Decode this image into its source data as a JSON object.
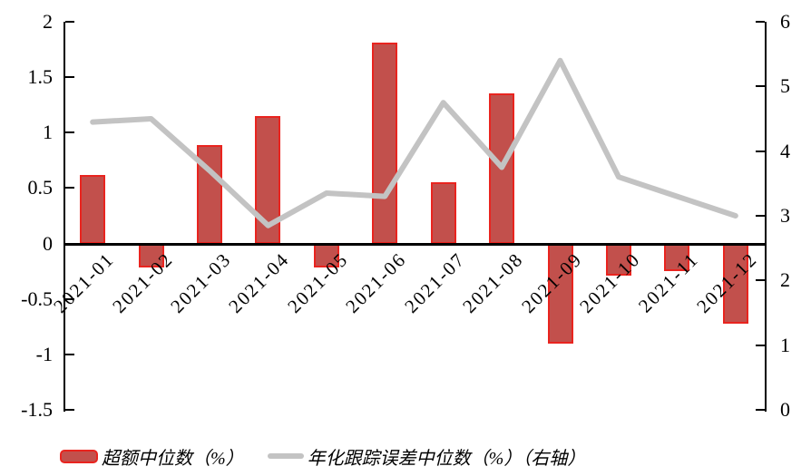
{
  "chart_data": {
    "type": "bar",
    "subtype": "combo-bar-line-dual-axis",
    "title": "",
    "categories": [
      "2021-01",
      "2021-02",
      "2021-03",
      "2021-04",
      "2021-05",
      "2021-06",
      "2021-07",
      "2021-08",
      "2021-09",
      "2021-10",
      "2021-11",
      "2021-12"
    ],
    "series": [
      {
        "name": "超额中位数（%）",
        "type": "bar",
        "axis": "left",
        "values": [
          0.62,
          -0.22,
          0.89,
          1.15,
          -0.22,
          1.81,
          0.55,
          1.35,
          -0.9,
          -0.29,
          -0.25,
          -0.72
        ]
      },
      {
        "name": "年化跟踪误差中位数（%）（右轴）",
        "type": "line",
        "axis": "right",
        "values": [
          4.45,
          4.5,
          3.7,
          2.85,
          3.35,
          3.3,
          4.75,
          3.75,
          5.4,
          3.6,
          3.3,
          3.0
        ]
      }
    ],
    "left_axis": {
      "min": -1.5,
      "max": 2,
      "ticks": [
        "2",
        "1.5",
        "1",
        "0.5",
        "0",
        "-0.5",
        "-1",
        "-1.5"
      ],
      "tick_values": [
        2,
        1.5,
        1,
        0.5,
        0,
        -0.5,
        -1,
        -1.5
      ]
    },
    "right_axis": {
      "min": 0,
      "max": 6,
      "ticks": [
        "6",
        "5",
        "4",
        "3",
        "2",
        "1",
        "0"
      ],
      "tick_values": [
        6,
        5,
        4,
        3,
        2,
        1,
        0
      ]
    },
    "grid": false,
    "legend_position": "bottom",
    "x_label_rotation_deg": -45
  },
  "colors": {
    "bar_fill": "#C2504C",
    "bar_border": "#E9241F",
    "line": "#C3C3C3",
    "axis": "#000000",
    "text": "#000000",
    "background": "#FFFFFF"
  },
  "legend": {
    "bar_label": "超额中位数（%）",
    "line_label": "年化跟踪误差中位数（%）（右轴）"
  }
}
